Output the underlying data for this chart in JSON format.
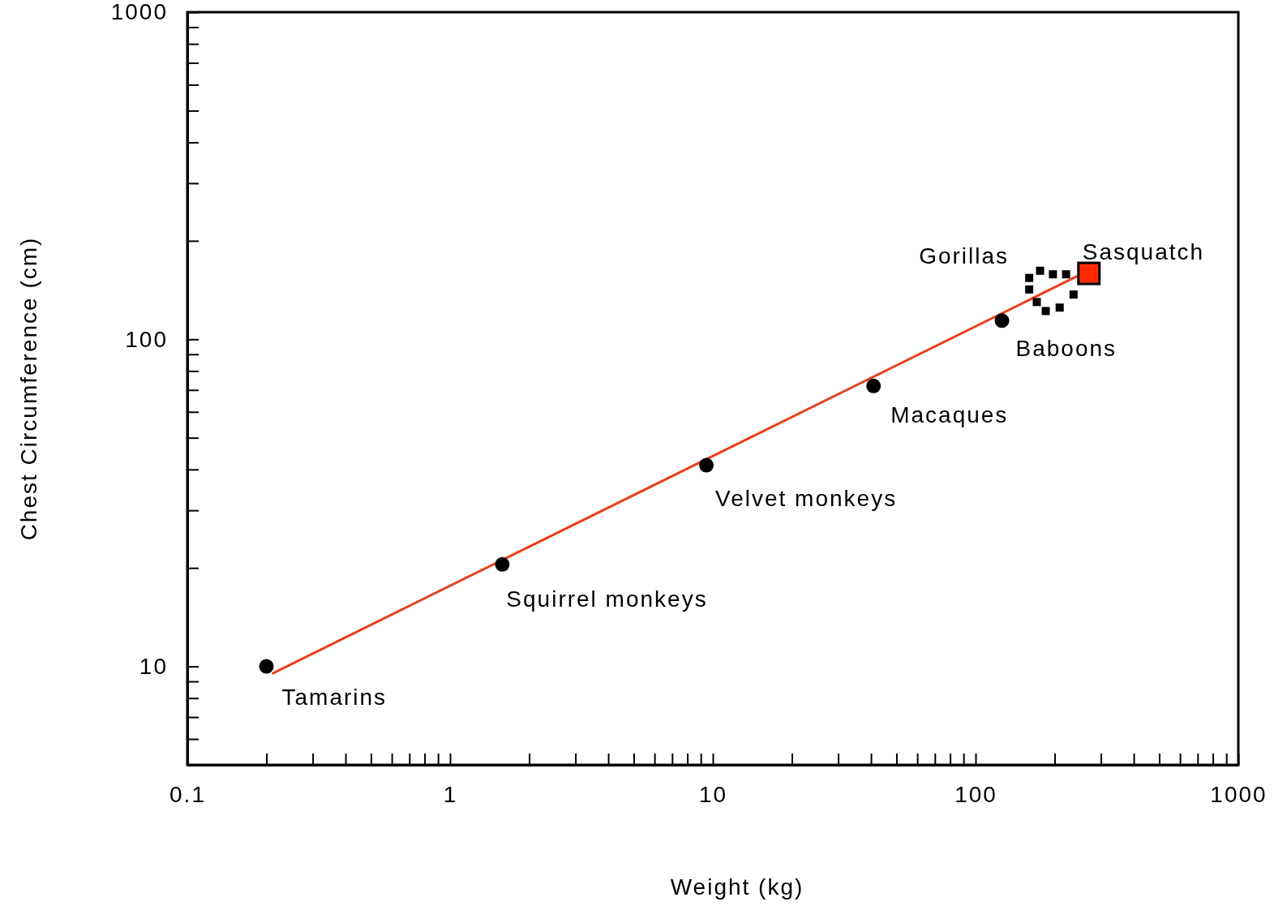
{
  "chart_data": {
    "type": "scatter",
    "xlabel": "Weight (kg)",
    "ylabel": "Chest Circumference (cm)",
    "log": "xy",
    "grid": false,
    "xlim": [
      0.1,
      1000
    ],
    "ylim": [
      5,
      1000
    ],
    "xticks": [
      0.1,
      {
        "value": 0.2,
        "label": null
      },
      {
        "value": 0.3,
        "label": null
      },
      {
        "value": 0.4,
        "label": null
      },
      {
        "value": 0.5,
        "label": null
      },
      {
        "value": 0.6,
        "label": null
      },
      {
        "value": 0.7,
        "label": null
      },
      {
        "value": 0.8,
        "label": null
      },
      {
        "value": 0.9,
        "label": null
      },
      1,
      {
        "value": 2,
        "label": null
      },
      {
        "value": 3,
        "label": null
      },
      {
        "value": 4,
        "label": null
      },
      {
        "value": 5,
        "label": null
      },
      {
        "value": 6,
        "label": null
      },
      {
        "value": 7,
        "label": null
      },
      {
        "value": 8,
        "label": null
      },
      {
        "value": 9,
        "label": null
      },
      10,
      {
        "value": 20,
        "label": null
      },
      {
        "value": 30,
        "label": null
      },
      {
        "value": 40,
        "label": null
      },
      {
        "value": 50,
        "label": null
      },
      {
        "value": 60,
        "label": null
      },
      {
        "value": 70,
        "label": null
      },
      {
        "value": 80,
        "label": null
      },
      {
        "value": 90,
        "label": null
      },
      100,
      {
        "value": 200,
        "label": null
      },
      {
        "value": 300,
        "label": null
      },
      {
        "value": 400,
        "label": null
      },
      {
        "value": 500,
        "label": null
      },
      {
        "value": 600,
        "label": null
      },
      {
        "value": 700,
        "label": null
      },
      {
        "value": 800,
        "label": null
      },
      {
        "value": 900,
        "label": null
      },
      1000
    ],
    "yticks": [
      {
        "value": 6,
        "label": null
      },
      {
        "value": 7,
        "label": null
      },
      {
        "value": 8,
        "label": null
      },
      {
        "value": 9,
        "label": null
      },
      10,
      {
        "value": 20,
        "label": null
      },
      {
        "value": 30,
        "label": null
      },
      {
        "value": 40,
        "label": null
      },
      {
        "value": 50,
        "label": null
      },
      {
        "value": 60,
        "label": null
      },
      {
        "value": 70,
        "label": null
      },
      {
        "value": 80,
        "label": null
      },
      {
        "value": 90,
        "label": null
      },
      100,
      {
        "value": 200,
        "label": null
      },
      {
        "value": 300,
        "label": null
      },
      {
        "value": 400,
        "label": null
      },
      {
        "value": 500,
        "label": null
      },
      {
        "value": 600,
        "label": null
      },
      {
        "value": 700,
        "label": null
      },
      {
        "value": 800,
        "label": null
      },
      {
        "value": 900,
        "label": null
      },
      1000
    ],
    "series": [
      {
        "type": "line",
        "color": "#e8401c",
        "line_style": "solid",
        "marker": "none",
        "x": [
          0.21,
          244
        ],
        "values": [
          9.5,
          156
        ]
      },
      {
        "color": "#000000",
        "marker": "circle",
        "x": [
          0.2,
          1.58,
          9.45,
          40.9,
          126
        ],
        "values": [
          10,
          20.5,
          41.2,
          72,
          114
        ]
      },
      {
        "color": "#000000",
        "marker": "square",
        "x": [
          160,
          176,
          197,
          221,
          160,
          236,
          171,
          185,
          209
        ],
        "values": [
          154,
          162,
          158,
          158,
          142,
          137,
          130,
          122,
          125
        ]
      },
      {
        "color": "#ff2a00",
        "marker": "square",
        "x": [
          270
        ],
        "values": [
          159
        ]
      }
    ],
    "annotations": [
      {
        "text": "Tamarins",
        "x": 0.2,
        "y": 10
      },
      {
        "text": "Squirrel monkeys",
        "x": 1.58,
        "y": 20.5
      },
      {
        "text": "Velvet monkeys",
        "x": 9.45,
        "y": 41.2
      },
      {
        "text": "Macaques",
        "x": 40.9,
        "y": 72
      },
      {
        "text": "Baboons",
        "x": 126,
        "y": 114
      },
      {
        "text": "Gorillas",
        "x": 160,
        "y": 154
      },
      {
        "text": "Sasquatch",
        "x": 270,
        "y": 159
      }
    ]
  }
}
